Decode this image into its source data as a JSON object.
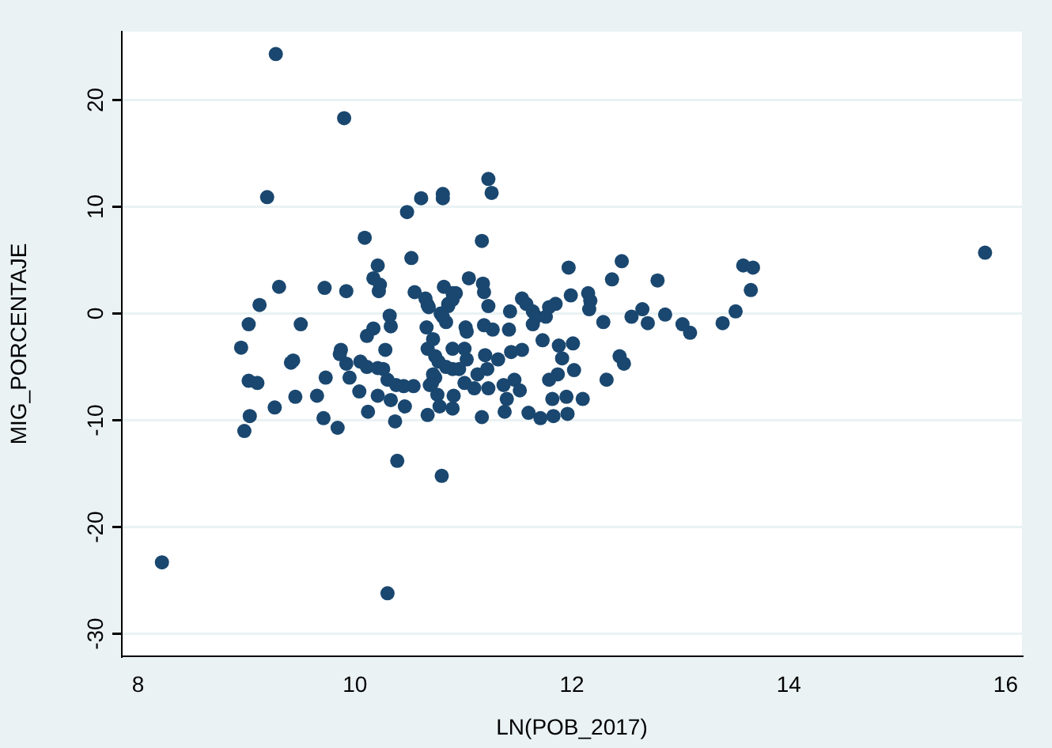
{
  "chart_data": {
    "type": "scatter",
    "xlabel": "LN(POB_2017)",
    "ylabel": "MIG_PORCENTAJE",
    "xlim": [
      7.85,
      16.15
    ],
    "ylim": [
      -32.1,
      26.4
    ],
    "xticks": [
      8,
      10,
      12,
      14,
      16
    ],
    "yticks": [
      -30,
      -20,
      -10,
      0,
      10,
      20
    ],
    "grid": "y",
    "legend": false,
    "marker": "circle",
    "series": [
      {
        "color": "#1a476f",
        "x": [
          9.27,
          9.9,
          9.19,
          10.81,
          10.81,
          10.61,
          10.48,
          10.09,
          10.52,
          10.21,
          10.17,
          10.22,
          9.3,
          9.72,
          9.92,
          10.55,
          10.65,
          10.67,
          10.82,
          9.12,
          9.02,
          9.5,
          10.32,
          10.33,
          10.17,
          10.11,
          10.66,
          10.72,
          10.81,
          10.84,
          10.86,
          10.9,
          8.95,
          9.87,
          10.28,
          9.86,
          9.92,
          9.41,
          9.43,
          9.02,
          9.1,
          9.73,
          9.95,
          10.05,
          10.04,
          10.11,
          10.21,
          10.26,
          10.3,
          10.38,
          10.45,
          10.54,
          10.21,
          10.33,
          10.46,
          10.37,
          10.12,
          9.65,
          9.45,
          9.26,
          9.71,
          9.84,
          9.03,
          8.98,
          10.39,
          10.8,
          8.22,
          10.3,
          10.67,
          10.74,
          10.77,
          10.84,
          10.9,
          10.71,
          10.74,
          10.76,
          10.78,
          10.67,
          10.9,
          10.9,
          11.23,
          11.26,
          11.17,
          11.05,
          11.18,
          11.19,
          11.23,
          10.93,
          10.9,
          10.86,
          10.68,
          10.23,
          10.79,
          11.02,
          11.03,
          11.19,
          11.27,
          11.42,
          11.43,
          11.54,
          11.58,
          11.64,
          11.64,
          11.67,
          11.76,
          11.79,
          11.85,
          11.97,
          11.99,
          12.15,
          12.17,
          12.16,
          12.29,
          12.37,
          12.46,
          12.79,
          12.55,
          12.65,
          12.7,
          12.86,
          13.02,
          13.09,
          11.73,
          11.88,
          12.01,
          11.91,
          12.02,
          11.87,
          11.79,
          12.44,
          12.48,
          12.32,
          11.54,
          11.44,
          11.32,
          11.2,
          11.22,
          11.13,
          11.03,
          11.01,
          10.96,
          10.72,
          10.69,
          11.01,
          11.1,
          11.23,
          11.37,
          11.47,
          11.52,
          11.4,
          11.38,
          10.91,
          11.17,
          11.6,
          11.71,
          11.83,
          11.96,
          11.82,
          11.95,
          12.1,
          15.81,
          13.58,
          13.67,
          13.65,
          13.51,
          13.39
        ],
        "values": [
          24.3,
          18.3,
          10.9,
          11.2,
          10.8,
          10.8,
          9.5,
          7.1,
          5.2,
          4.5,
          3.3,
          2.1,
          2.5,
          2.4,
          2.1,
          2.0,
          1.4,
          0.8,
          2.5,
          0.8,
          -1.0,
          -1.0,
          -0.2,
          -1.2,
          -1.4,
          -2.1,
          -1.3,
          -2.4,
          -0.3,
          -0.8,
          0.9,
          1.9,
          -3.2,
          -3.4,
          -3.4,
          -3.8,
          -4.7,
          -4.6,
          -4.4,
          -6.3,
          -6.5,
          -6.0,
          -6.0,
          -4.5,
          -7.3,
          -5.0,
          -5.1,
          -5.2,
          -6.2,
          -6.7,
          -6.8,
          -6.8,
          -7.7,
          -8.1,
          -8.7,
          -10.1,
          -9.2,
          -7.7,
          -7.8,
          -8.8,
          -9.8,
          -10.7,
          -9.6,
          -11.0,
          -13.8,
          -15.2,
          -23.3,
          -26.2,
          -3.3,
          -4.0,
          -4.5,
          -5.0,
          -5.2,
          -6.5,
          -6.0,
          -7.6,
          -8.7,
          -9.5,
          -8.9,
          -3.3,
          12.6,
          11.3,
          6.8,
          3.3,
          2.8,
          2.0,
          0.7,
          1.9,
          1.3,
          0.7,
          0.6,
          2.7,
          0.0,
          -1.3,
          -1.7,
          -1.1,
          -1.5,
          -1.5,
          0.2,
          1.4,
          0.9,
          0.2,
          -1.0,
          -0.3,
          -0.3,
          0.6,
          0.9,
          4.3,
          1.7,
          1.9,
          1.2,
          0.4,
          -0.8,
          3.2,
          4.9,
          3.1,
          -0.3,
          0.4,
          -0.9,
          -0.1,
          -1.0,
          -1.8,
          -2.5,
          -3.0,
          -2.8,
          -4.2,
          -5.3,
          -5.7,
          -6.2,
          -4.0,
          -4.7,
          -6.2,
          -3.4,
          -3.6,
          -4.3,
          -3.9,
          -5.2,
          -5.7,
          -4.3,
          -3.3,
          -5.2,
          -5.7,
          -6.7,
          -6.5,
          -7.0,
          -7.0,
          -6.7,
          -6.2,
          -7.2,
          -8.0,
          -9.2,
          -7.7,
          -9.7,
          -9.3,
          -9.8,
          -9.6,
          -9.4,
          -8.0,
          -7.8,
          -8.0,
          5.7,
          4.5,
          4.3,
          2.2,
          0.2,
          -0.9
        ]
      }
    ]
  }
}
